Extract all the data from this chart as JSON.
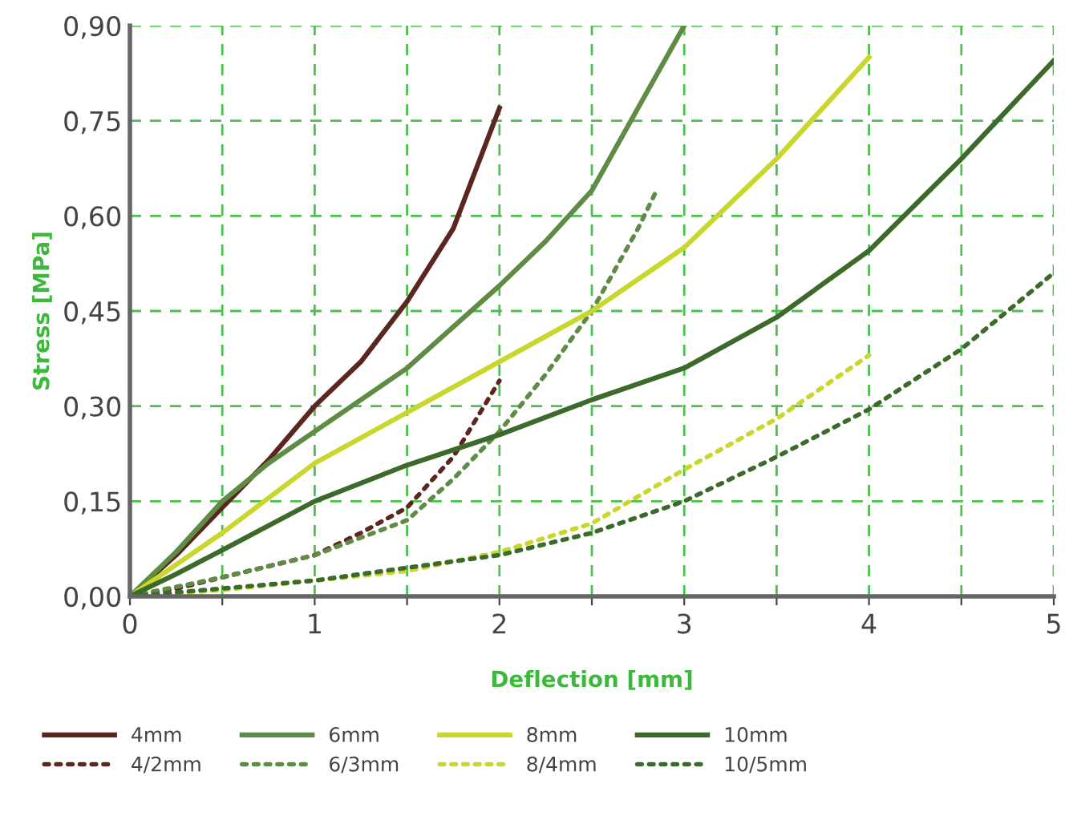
{
  "chart_data": {
    "type": "line",
    "xlabel": "Deflection [mm]",
    "ylabel": "Stress [MPa]",
    "xlim": [
      0,
      5
    ],
    "ylim": [
      0,
      0.9
    ],
    "xticks": [
      0,
      {
        "value": 0.5,
        "label": null
      },
      1,
      {
        "value": 1.5,
        "label": null
      },
      2,
      {
        "value": 2.5,
        "label": null
      },
      3,
      {
        "value": 3.5,
        "label": null
      },
      4,
      {
        "value": 4.5,
        "label": null
      },
      5
    ],
    "yticks": [
      {
        "value": 0,
        "label": "0,00"
      },
      {
        "value": 0.15,
        "label": "0,15"
      },
      {
        "value": 0.3,
        "label": "0,30"
      },
      {
        "value": 0.45,
        "label": "0,45"
      },
      {
        "value": 0.6,
        "label": "0,60"
      },
      {
        "value": 0.75,
        "label": "0,75"
      },
      {
        "value": 0.9,
        "label": "0,90"
      }
    ],
    "grid": true,
    "legend": "bottom",
    "marker": "none",
    "series": [
      {
        "name": "4mm",
        "color": "#5c2620",
        "line_style": "solid",
        "x": [
          0,
          0.25,
          0.5,
          0.75,
          1,
          1.25,
          1.5,
          1.75,
          2
        ],
        "values": [
          0,
          0.065,
          0.14,
          0.215,
          0.3,
          0.37,
          0.465,
          0.58,
          0.77
        ]
      },
      {
        "name": "4/2mm",
        "color": "#5c2620",
        "line_style": "dotted",
        "x": [
          0,
          0.25,
          0.5,
          1,
          1.25,
          1.5,
          1.75,
          2
        ],
        "values": [
          0,
          0.012,
          0.03,
          0.065,
          0.1,
          0.14,
          0.22,
          0.34
        ]
      },
      {
        "name": "6mm",
        "color": "#5f8c45",
        "line_style": "solid",
        "x": [
          0,
          0.25,
          0.5,
          0.75,
          1,
          1.5,
          2,
          2.25,
          2.5,
          2.75,
          3
        ],
        "values": [
          0,
          0.07,
          0.15,
          0.21,
          0.26,
          0.36,
          0.49,
          0.56,
          0.64,
          0.77,
          0.9
        ]
      },
      {
        "name": "6/3mm",
        "color": "#5f8c45",
        "line_style": "dotted",
        "x": [
          0,
          0.5,
          1,
          1.5,
          1.75,
          2,
          2.25,
          2.5,
          2.75,
          2.85
        ],
        "values": [
          0,
          0.03,
          0.065,
          0.12,
          0.185,
          0.26,
          0.35,
          0.45,
          0.58,
          0.64
        ]
      },
      {
        "name": "8mm",
        "color": "#c9d62c",
        "line_style": "solid",
        "x": [
          0,
          0.25,
          0.5,
          1,
          1.5,
          2,
          2.5,
          3,
          3.25,
          3.5,
          3.75,
          4
        ],
        "values": [
          0,
          0.05,
          0.1,
          0.21,
          0.29,
          0.37,
          0.45,
          0.55,
          0.62,
          0.69,
          0.77,
          0.85
        ]
      },
      {
        "name": "8/4mm",
        "color": "#c9d62c",
        "line_style": "dotted",
        "x": [
          0,
          0.5,
          1,
          1.5,
          2,
          2.5,
          3,
          3.5,
          4
        ],
        "values": [
          0,
          0.01,
          0.025,
          0.04,
          0.07,
          0.115,
          0.2,
          0.28,
          0.38
        ]
      },
      {
        "name": "10mm",
        "color": "#3b6a2b",
        "line_style": "solid",
        "x": [
          0,
          0.25,
          0.5,
          1,
          1.5,
          2,
          2.5,
          3,
          3.5,
          4,
          4.5,
          5
        ],
        "values": [
          0,
          0.035,
          0.073,
          0.15,
          0.207,
          0.255,
          0.31,
          0.36,
          0.44,
          0.545,
          0.69,
          0.845
        ]
      },
      {
        "name": "10/5mm",
        "color": "#3b6a2b",
        "line_style": "dotted",
        "x": [
          0,
          1,
          2,
          2.5,
          3,
          3.5,
          4,
          4.5,
          5
        ],
        "values": [
          0,
          0.025,
          0.065,
          0.1,
          0.15,
          0.22,
          0.295,
          0.39,
          0.51
        ]
      }
    ]
  }
}
